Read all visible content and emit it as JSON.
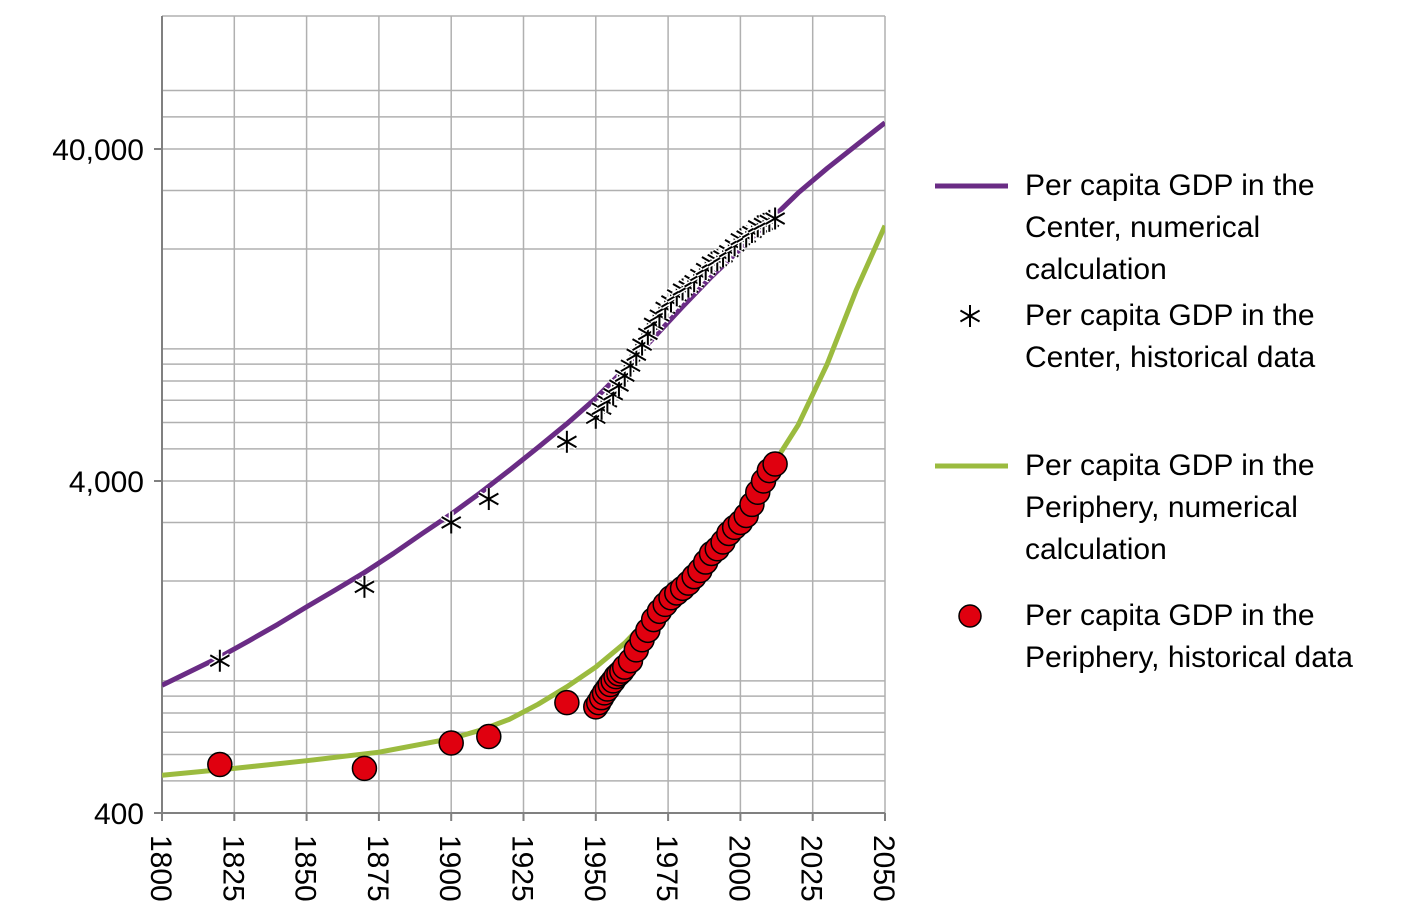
{
  "chart_data": {
    "type": "scatter",
    "title": "",
    "xlabel": "",
    "ylabel": "",
    "y_scale": "log",
    "xlim": [
      1800,
      2050
    ],
    "ylim": [
      400,
      60000
    ],
    "x_ticks": [
      "1800",
      "1825",
      "1850",
      "1875",
      "1900",
      "1925",
      "1950",
      "1975",
      "2000",
      "2025",
      "2050"
    ],
    "y_ticks": [
      {
        "value": 400,
        "label": "400"
      },
      {
        "value": 4000,
        "label": "4,000"
      },
      {
        "value": 40000,
        "label": "40,000"
      }
    ],
    "grid": true,
    "legend_position": "right",
    "series": [
      {
        "name": "Per capita GDP in the Center, numerical calculation",
        "kind": "line",
        "color": "#6a2c85",
        "x": [
          1800,
          1810,
          1820,
          1830,
          1840,
          1850,
          1860,
          1870,
          1880,
          1890,
          1900,
          1910,
          1920,
          1930,
          1940,
          1950,
          1960,
          1970,
          1980,
          1990,
          2000,
          2010,
          2020,
          2030,
          2040,
          2050
        ],
        "y": [
          970,
          1070,
          1180,
          1320,
          1480,
          1670,
          1880,
          2120,
          2420,
          2780,
          3180,
          3680,
          4300,
          5050,
          5950,
          7100,
          8700,
          10800,
          13400,
          16500,
          20000,
          24300,
          29500,
          35000,
          41000,
          48000
        ]
      },
      {
        "name": "Per capita GDP in the Center, historical data",
        "kind": "marker",
        "marker": "asterisk",
        "color": "#000000",
        "x": [
          1820,
          1870,
          1900,
          1913,
          1940,
          1950,
          1952,
          1954,
          1956,
          1958,
          1960,
          1962,
          1964,
          1966,
          1968,
          1970,
          1972,
          1974,
          1976,
          1978,
          1980,
          1982,
          1984,
          1986,
          1988,
          1990,
          1992,
          1994,
          1996,
          1998,
          2000,
          2002,
          2004,
          2006,
          2008,
          2010,
          2012
        ],
        "y": [
          1150,
          1920,
          3000,
          3530,
          5250,
          6200,
          6600,
          6950,
          7300,
          7750,
          8300,
          8900,
          9600,
          10300,
          11100,
          11900,
          12600,
          13300,
          13900,
          14500,
          15100,
          15400,
          16000,
          16700,
          17400,
          18200,
          18500,
          19000,
          19700,
          20500,
          21400,
          21800,
          22500,
          23400,
          23800,
          24300,
          24700
        ]
      },
      {
        "name": "Per capita GDP in the Periphery, numerical calculation",
        "kind": "line",
        "color": "#9bbb3f",
        "x": [
          1800,
          1825,
          1850,
          1875,
          1900,
          1910,
          1920,
          1930,
          1940,
          1950,
          1960,
          1970,
          1980,
          1990,
          2000,
          2010,
          2020,
          2030,
          2040,
          2050
        ],
        "y": [
          520,
          545,
          575,
          610,
          670,
          710,
          765,
          850,
          960,
          1100,
          1300,
          1600,
          2000,
          2550,
          3300,
          4300,
          5900,
          9000,
          15000,
          23500
        ]
      },
      {
        "name": "Per capita GDP in the Periphery, historical data",
        "kind": "marker",
        "marker": "circle",
        "color": "#e0000f",
        "x": [
          1820,
          1870,
          1900,
          1913,
          1940,
          1950,
          1951,
          1952,
          1953,
          1954,
          1955,
          1956,
          1957,
          1958,
          1959,
          1960,
          1962,
          1964,
          1966,
          1968,
          1970,
          1972,
          1974,
          1976,
          1978,
          1980,
          1982,
          1984,
          1986,
          1988,
          1990,
          1992,
          1994,
          1996,
          1998,
          2000,
          2002,
          2004,
          2006,
          2008,
          2010,
          2012
        ],
        "y": [
          560,
          545,
          650,
          680,
          860,
          835,
          860,
          890,
          920,
          945,
          975,
          1000,
          1030,
          1050,
          1070,
          1100,
          1150,
          1240,
          1330,
          1420,
          1530,
          1620,
          1700,
          1780,
          1840,
          1900,
          1970,
          2060,
          2150,
          2280,
          2420,
          2500,
          2620,
          2780,
          2900,
          3000,
          3150,
          3400,
          3700,
          4000,
          4300,
          4500
        ]
      }
    ]
  }
}
